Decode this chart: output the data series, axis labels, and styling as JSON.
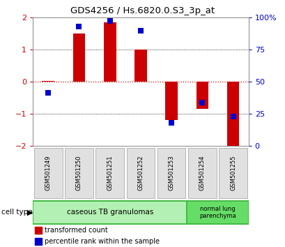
{
  "title": "GDS4256 / Hs.6820.0.S3_3p_at",
  "samples": [
    "GSM501249",
    "GSM501250",
    "GSM501251",
    "GSM501252",
    "GSM501253",
    "GSM501254",
    "GSM501255"
  ],
  "red_values": [
    0.02,
    1.5,
    1.85,
    1.0,
    -1.2,
    -0.85,
    -2.1
  ],
  "blue_values_left": [
    -0.35,
    1.72,
    1.88,
    1.58,
    -1.28,
    -0.65,
    -1.1
  ],
  "cell_types": [
    {
      "label": "caseous TB granulomas",
      "n_samples": 5,
      "color": "#b3f0b3"
    },
    {
      "label": "normal lung\nparenchyma",
      "n_samples": 2,
      "color": "#66dd66"
    }
  ],
  "ylim": [
    -2,
    2
  ],
  "yticks_left": [
    -2,
    -1,
    0,
    1,
    2
  ],
  "yticks_right_vals": [
    0,
    25,
    50,
    75,
    100
  ],
  "bar_color": "#cc0000",
  "dot_color": "#0000cc",
  "bg_color": "#ffffff",
  "plot_bg": "#ffffff",
  "zero_line_color": "#cc0000",
  "tick_label_color_left": "#cc0000",
  "tick_label_color_right": "#0000cc",
  "bar_width": 0.4,
  "dot_size": 40
}
